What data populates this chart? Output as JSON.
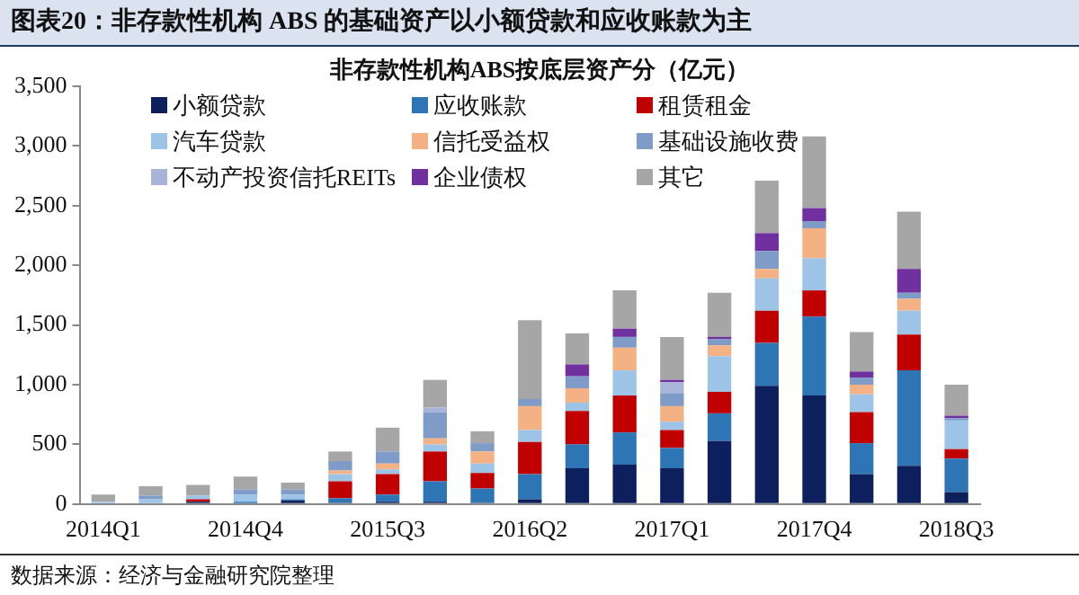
{
  "chart_data": {
    "type": "bar",
    "title": "图表20：非存款性机构 ABS 的基础资产以小额贷款和应收账款为主",
    "subtitle": "非存款性机构ABS按底层资产分（亿元）",
    "annotations": [
      "数据来源：经济与金融研究院整理"
    ],
    "categories": [
      "2014Q1",
      null,
      null,
      "2014Q4",
      null,
      null,
      "2015Q3",
      null,
      null,
      "2016Q2",
      null,
      null,
      "2017Q1",
      null,
      null,
      "2017Q4",
      null,
      null,
      "2018Q3"
    ],
    "stacked": true,
    "grid": false,
    "legend": "top left",
    "ylim": [
      0,
      3500
    ],
    "yticks": [
      0,
      {
        "value": 500,
        "label": "500"
      },
      {
        "value": 1000,
        "label": "1,000"
      },
      {
        "value": 1500,
        "label": "1,500"
      },
      {
        "value": 2000,
        "label": "2,000"
      },
      {
        "value": 2500,
        "label": "2,500"
      },
      {
        "value": 3000,
        "label": "3,000"
      },
      {
        "value": 3500,
        "label": "3,500"
      }
    ],
    "series": [
      {
        "name": "小额贷款",
        "color": "#0d1f5c",
        "values": [
          0,
          0,
          20,
          0,
          30,
          10,
          20,
          20,
          10,
          40,
          300,
          330,
          300,
          530,
          990,
          910,
          250,
          320,
          100
        ]
      },
      {
        "name": "应收账款",
        "color": "#2e75b6",
        "values": [
          0,
          0,
          0,
          20,
          10,
          40,
          60,
          170,
          120,
          210,
          200,
          270,
          170,
          230,
          360,
          660,
          260,
          800,
          280
        ]
      },
      {
        "name": "租赁租金",
        "color": "#c00000",
        "values": [
          0,
          0,
          20,
          0,
          0,
          140,
          170,
          250,
          130,
          270,
          280,
          310,
          150,
          180,
          270,
          220,
          260,
          300,
          80
        ]
      },
      {
        "name": "汽车贷款",
        "color": "#9dc3e6",
        "values": [
          20,
          40,
          30,
          60,
          40,
          60,
          40,
          60,
          80,
          100,
          70,
          210,
          70,
          300,
          270,
          270,
          150,
          200,
          240
        ]
      },
      {
        "name": "信托受益权",
        "color": "#f4b183",
        "values": [
          0,
          0,
          0,
          0,
          0,
          30,
          50,
          50,
          100,
          200,
          120,
          190,
          130,
          90,
          80,
          250,
          80,
          100,
          0
        ]
      },
      {
        "name": "基础设施收费",
        "color": "#7f9cc8",
        "values": [
          0,
          30,
          0,
          40,
          40,
          80,
          100,
          220,
          70,
          60,
          100,
          90,
          110,
          50,
          150,
          60,
          60,
          50,
          20
        ]
      },
      {
        "name": "不动产投资信托REITs",
        "color": "#a9b4d9",
        "values": [
          0,
          0,
          0,
          0,
          0,
          0,
          0,
          40,
          0,
          0,
          0,
          0,
          90,
          0,
          0,
          0,
          0,
          0,
          0
        ]
      },
      {
        "name": "企业债权",
        "color": "#7030a0",
        "values": [
          0,
          0,
          0,
          0,
          0,
          0,
          0,
          0,
          0,
          0,
          100,
          70,
          20,
          20,
          150,
          110,
          50,
          200,
          20
        ]
      },
      {
        "name": "其它",
        "color": "#a6a6a6",
        "values": [
          60,
          80,
          90,
          110,
          60,
          80,
          200,
          230,
          100,
          660,
          260,
          320,
          360,
          370,
          440,
          600,
          330,
          480,
          260
        ]
      }
    ]
  }
}
